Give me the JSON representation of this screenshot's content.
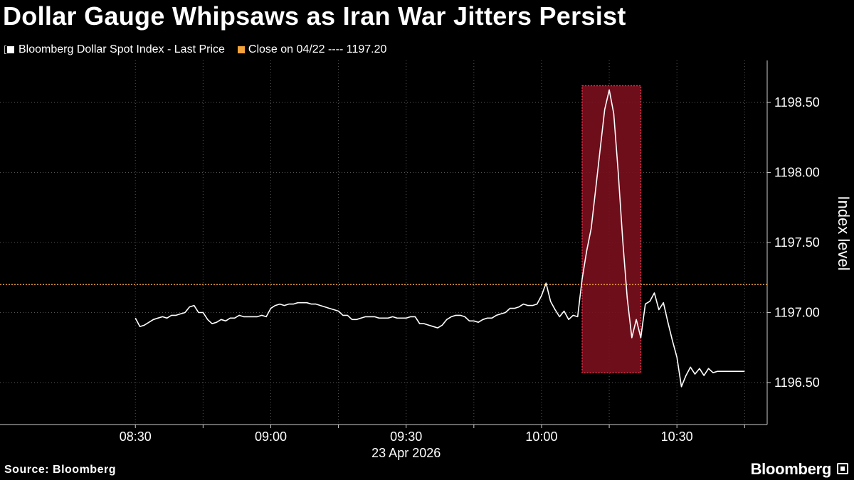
{
  "title": "Dollar Gauge Whipsaws as Iran War Jitters Persist",
  "legend": {
    "series_label": "Bloomberg Dollar Spot Index - Last Price",
    "reference_label": "Close on 04/22 ---- 1197.20"
  },
  "footer": {
    "source": "Source: Bloomberg",
    "brand": "Bloomberg"
  },
  "colors": {
    "background": "#000000",
    "line": "#ffffff",
    "reference": "#f2a33a",
    "highlight_fill": "#7a0f1e",
    "highlight_border": "#e0304a"
  },
  "chart_data": {
    "type": "line",
    "title": "Dollar Gauge Whipsaws as Iran War Jitters Persist",
    "xlabel": "23 Apr 2026",
    "ylabel": "Index level",
    "x_ticks": [
      "08:30",
      "09:00",
      "09:30",
      "10:00",
      "10:30"
    ],
    "y_ticks": [
      1196.5,
      1197.0,
      1197.5,
      1198.0,
      1198.5
    ],
    "y_tick_labels": [
      "1196.50",
      "1197.00",
      "1197.50",
      "1198.00",
      "1198.50"
    ],
    "xlim": [
      "08:00",
      "10:50"
    ],
    "ylim": [
      1196.2,
      1198.8
    ],
    "reference_line": {
      "label": "Close on 04/22",
      "value": 1197.2
    },
    "highlight_range": {
      "x_start": "10:09",
      "x_end": "10:22",
      "y_low": 1196.57,
      "y_high": 1198.62
    },
    "grid": "dotted",
    "series": [
      {
        "name": "Bloomberg Dollar Spot Index - Last Price",
        "x": [
          "08:30",
          "08:31",
          "08:32",
          "08:33",
          "08:34",
          "08:35",
          "08:36",
          "08:37",
          "08:38",
          "08:39",
          "08:40",
          "08:41",
          "08:42",
          "08:43",
          "08:44",
          "08:45",
          "08:46",
          "08:47",
          "08:48",
          "08:49",
          "08:50",
          "08:51",
          "08:52",
          "08:53",
          "08:54",
          "08:55",
          "08:56",
          "08:57",
          "08:58",
          "08:59",
          "09:00",
          "09:01",
          "09:02",
          "09:03",
          "09:04",
          "09:05",
          "09:06",
          "09:07",
          "09:08",
          "09:09",
          "09:10",
          "09:11",
          "09:12",
          "09:13",
          "09:14",
          "09:15",
          "09:16",
          "09:17",
          "09:18",
          "09:19",
          "09:20",
          "09:21",
          "09:22",
          "09:23",
          "09:24",
          "09:25",
          "09:26",
          "09:27",
          "09:28",
          "09:29",
          "09:30",
          "09:31",
          "09:32",
          "09:33",
          "09:34",
          "09:35",
          "09:36",
          "09:37",
          "09:38",
          "09:39",
          "09:40",
          "09:41",
          "09:42",
          "09:43",
          "09:44",
          "09:45",
          "09:46",
          "09:47",
          "09:48",
          "09:49",
          "09:50",
          "09:51",
          "09:52",
          "09:53",
          "09:54",
          "09:55",
          "09:56",
          "09:57",
          "09:58",
          "09:59",
          "10:00",
          "10:01",
          "10:02",
          "10:03",
          "10:04",
          "10:05",
          "10:06",
          "10:07",
          "10:08",
          "10:09",
          "10:10",
          "10:11",
          "10:12",
          "10:13",
          "10:14",
          "10:15",
          "10:16",
          "10:17",
          "10:18",
          "10:19",
          "10:20",
          "10:21",
          "10:22",
          "10:23",
          "10:24",
          "10:25",
          "10:26",
          "10:27",
          "10:28",
          "10:29",
          "10:30",
          "10:31",
          "10:32",
          "10:33",
          "10:34",
          "10:35",
          "10:36",
          "10:37",
          "10:38",
          "10:39",
          "10:40",
          "10:41",
          "10:42",
          "10:43",
          "10:44",
          "10:45"
        ],
        "values": [
          1196.96,
          1196.9,
          1196.91,
          1196.93,
          1196.95,
          1196.96,
          1196.97,
          1196.96,
          1196.98,
          1196.98,
          1196.99,
          1197.0,
          1197.04,
          1197.05,
          1197.0,
          1197.0,
          1196.95,
          1196.92,
          1196.93,
          1196.95,
          1196.94,
          1196.96,
          1196.96,
          1196.98,
          1196.97,
          1196.97,
          1196.97,
          1196.97,
          1196.98,
          1196.97,
          1197.03,
          1197.05,
          1197.06,
          1197.05,
          1197.06,
          1197.06,
          1197.07,
          1197.07,
          1197.07,
          1197.06,
          1197.06,
          1197.05,
          1197.04,
          1197.03,
          1197.02,
          1197.01,
          1196.98,
          1196.98,
          1196.95,
          1196.95,
          1196.96,
          1196.97,
          1196.97,
          1196.97,
          1196.96,
          1196.96,
          1196.96,
          1196.97,
          1196.96,
          1196.96,
          1196.96,
          1196.97,
          1196.97,
          1196.92,
          1196.92,
          1196.91,
          1196.9,
          1196.89,
          1196.91,
          1196.95,
          1196.97,
          1196.98,
          1196.98,
          1196.97,
          1196.94,
          1196.94,
          1196.93,
          1196.95,
          1196.96,
          1196.96,
          1196.98,
          1196.99,
          1197.0,
          1197.03,
          1197.03,
          1197.04,
          1197.06,
          1197.05,
          1197.05,
          1197.06,
          1197.12,
          1197.21,
          1197.08,
          1197.02,
          1196.97,
          1197.01,
          1196.95,
          1196.98,
          1196.97,
          1197.24,
          1197.44,
          1197.6,
          1197.88,
          1198.17,
          1198.45,
          1198.59,
          1198.42,
          1198.0,
          1197.51,
          1197.1,
          1196.82,
          1196.95,
          1196.82,
          1197.06,
          1197.08,
          1197.14,
          1197.02,
          1197.07,
          1196.93,
          1196.8,
          1196.68,
          1196.47,
          1196.55,
          1196.61,
          1196.56,
          1196.6,
          1196.55,
          1196.6,
          1196.57,
          1196.58,
          1196.58,
          1196.58,
          1196.58,
          1196.58,
          1196.58,
          1196.58
        ]
      }
    ]
  }
}
